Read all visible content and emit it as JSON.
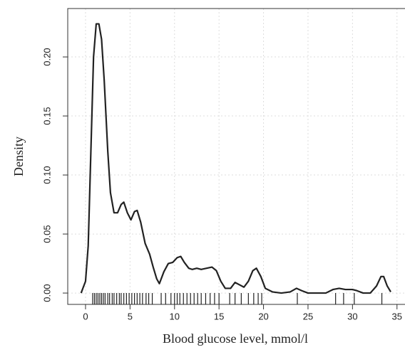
{
  "chart_data": {
    "type": "line",
    "x_label": "Blood glucose level, mmol/l",
    "y_label": "Density",
    "series": [
      {
        "color": "#222222",
        "x": [
          -0.5,
          0,
          0.3,
          0.6,
          0.9,
          1.2,
          1.5,
          1.8,
          2.1,
          2.5,
          2.8,
          3.2,
          3.6,
          4.0,
          4.3,
          4.7,
          5.1,
          5.5,
          5.8,
          6.2,
          6.7,
          7.2,
          7.6,
          8.0,
          8.3,
          8.8,
          9.3,
          9.8,
          10.3,
          10.7,
          11.1,
          11.6,
          12.0,
          12.5,
          13.0,
          13.6,
          14.2,
          14.7,
          15.2,
          15.7,
          16.3,
          16.8,
          17.3,
          17.8,
          18.3,
          18.8,
          19.2,
          19.7,
          20.2,
          21,
          22,
          23,
          23.7,
          24.3,
          25,
          26,
          27,
          27.8,
          28.5,
          29.2,
          30.0,
          30.5,
          31.2,
          32,
          32.7,
          33.2,
          33.5,
          33.9,
          34.3
        ],
        "values": [
          0.0,
          0.01,
          0.04,
          0.12,
          0.2,
          0.228,
          0.228,
          0.215,
          0.18,
          0.12,
          0.085,
          0.068,
          0.068,
          0.075,
          0.077,
          0.068,
          0.062,
          0.069,
          0.07,
          0.06,
          0.042,
          0.033,
          0.022,
          0.012,
          0.008,
          0.018,
          0.025,
          0.026,
          0.03,
          0.031,
          0.026,
          0.021,
          0.02,
          0.021,
          0.02,
          0.021,
          0.022,
          0.019,
          0.01,
          0.004,
          0.004,
          0.009,
          0.007,
          0.005,
          0.01,
          0.019,
          0.021,
          0.014,
          0.004,
          0.001,
          0.0,
          0.001,
          0.004,
          0.002,
          0.0,
          0.0,
          0.0,
          0.003,
          0.004,
          0.003,
          0.003,
          0.002,
          0.0,
          0.0,
          0.006,
          0.014,
          0.014,
          0.006,
          0.001
        ]
      }
    ],
    "rug": [
      0.8,
      1.0,
      1.2,
      1.4,
      1.6,
      1.8,
      2.0,
      2.2,
      2.5,
      2.7,
      3.0,
      3.2,
      3.5,
      3.8,
      4.0,
      4.3,
      4.6,
      4.9,
      5.2,
      5.5,
      5.8,
      6.1,
      6.4,
      6.8,
      7.1,
      7.5,
      8.5,
      9.0,
      9.6,
      10.0,
      10.3,
      10.6,
      11.0,
      11.4,
      11.8,
      12.2,
      12.6,
      13.0,
      13.5,
      14.0,
      14.5,
      15.0,
      16.2,
      16.8,
      17.5,
      18.3,
      18.9,
      19.4,
      19.8,
      23.8,
      28.1,
      29.0,
      30.2,
      33.3
    ],
    "xlim": [
      -2,
      35.9
    ],
    "xticks": [
      0,
      5,
      10,
      15,
      20,
      25,
      30,
      35
    ],
    "ylim": [
      -0.0096,
      0.241
    ],
    "yticks": [
      {
        "value": 0,
        "label": "0.00"
      },
      {
        "value": 0.05,
        "label": "0.05"
      },
      {
        "value": 0.1,
        "label": "0.10"
      },
      {
        "value": 0.15,
        "label": "0.15"
      },
      {
        "value": 0.2,
        "label": "0.20"
      }
    ],
    "grid": true
  }
}
